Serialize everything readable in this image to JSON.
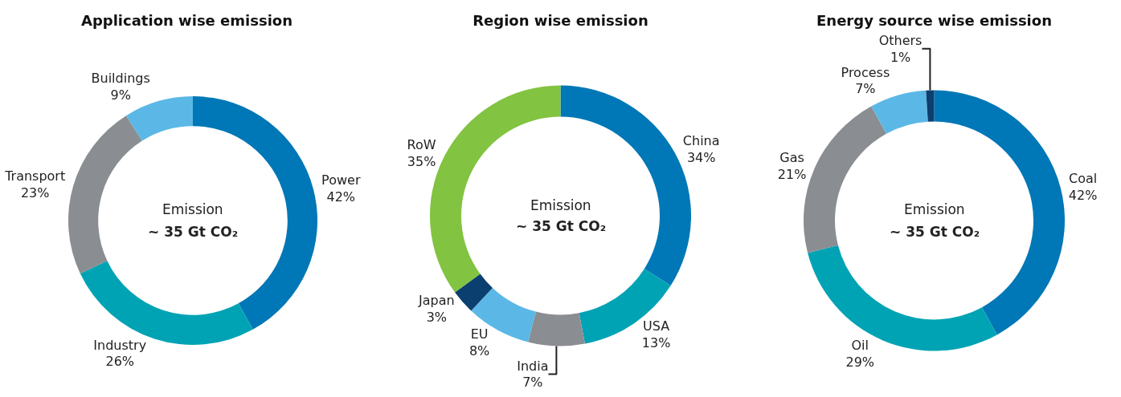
{
  "chart_data": [
    {
      "type": "donut",
      "title": "Application wise emission",
      "categories": [
        "Power",
        "Industry",
        "Transport",
        "Buildings"
      ],
      "values": [
        42,
        26,
        23,
        9
      ],
      "colors": [
        "#0077b6",
        "#00a3b4",
        "#8a8d91",
        "#5bb8e6"
      ],
      "value_labels": [
        "42%",
        "26%",
        "23%",
        "9%"
      ],
      "annotations": [
        "Emission",
        "~ 35 Gt CO₂"
      ],
      "legend": false
    },
    {
      "type": "donut",
      "title": "Region wise emission",
      "categories": [
        "China",
        "USA",
        "India",
        "EU",
        "Japan",
        "RoW"
      ],
      "values": [
        34,
        13,
        7,
        8,
        3,
        35
      ],
      "colors": [
        "#0077b6",
        "#00a3b4",
        "#8a8d91",
        "#5bb8e6",
        "#0b3f70",
        "#82c341"
      ],
      "value_labels": [
        "34%",
        "13%",
        "7%",
        "8%",
        "3%",
        "35%"
      ],
      "annotations": [
        "Emission",
        "~ 35 Gt CO₂"
      ],
      "legend": false
    },
    {
      "type": "donut",
      "title": "Energy source wise emission",
      "categories": [
        "Coal",
        "Oil",
        "Gas",
        "Process",
        "Others"
      ],
      "values": [
        42,
        29,
        21,
        7,
        1
      ],
      "colors": [
        "#0077b6",
        "#00a3b4",
        "#8a8d91",
        "#5bb8e6",
        "#0b3f70"
      ],
      "value_labels": [
        "42%",
        "29%",
        "21%",
        "7%",
        "1%"
      ],
      "annotations": [
        "Emission",
        "~ 35 Gt CO₂"
      ],
      "legend": false
    }
  ]
}
